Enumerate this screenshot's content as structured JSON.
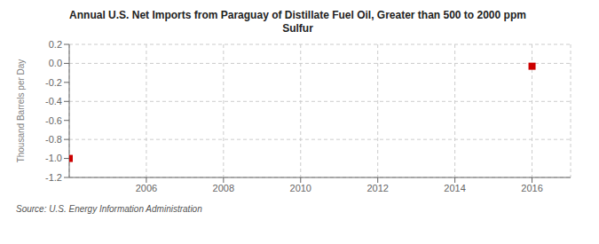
{
  "chart_data": {
    "type": "scatter",
    "title": "Annual U.S. Net Imports from Paraguay of Distillate Fuel Oil, Greater than 500 to 2000 ppm\nSulfur",
    "ylabel": "Thousand Barrels per Day",
    "source": "Source: U.S. Energy Information Administration",
    "x": [
      2004,
      2016
    ],
    "values": [
      -1.0,
      -0.03
    ],
    "color": "#cc0000",
    "marker": "square",
    "xlim": [
      2004.0,
      2017.0
    ],
    "ylim": [
      -1.2,
      0.2
    ],
    "xticks": [
      2006,
      2008,
      2010,
      2012,
      2014,
      2016
    ],
    "yticks": [
      0.2,
      {
        "value": 0,
        "label": "0.0"
      },
      -0.2,
      -0.4,
      -0.6,
      -0.8,
      {
        "value": -1.0,
        "label": "-1.0"
      },
      -1.2
    ],
    "grid": true
  }
}
